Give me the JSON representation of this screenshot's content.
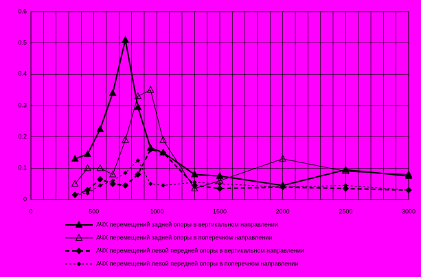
{
  "chart_data": {
    "type": "line",
    "x": [
      350,
      450,
      550,
      650,
      750,
      850,
      950,
      1050,
      1300,
      1500,
      2000,
      2500,
      3000
    ],
    "series": [
      {
        "name": "АЧХ перемещений задней опоры в вертикальном направлении",
        "color": "#000000",
        "width": 2,
        "dash": "solid",
        "marker": "filled-triangle",
        "values": [
          0.13,
          0.145,
          0.225,
          0.34,
          0.51,
          0.295,
          0.165,
          0.15,
          0.08,
          0.075,
          0.045,
          0.095,
          0.075
        ]
      },
      {
        "name": "АЧХ перемещений задней опоры в поперечном направлении",
        "color": "#000000",
        "width": 1,
        "dash": "solid",
        "marker": "open-triangle",
        "values": [
          0.05,
          0.1,
          0.1,
          0.08,
          0.19,
          0.33,
          0.35,
          0.19,
          0.035,
          0.06,
          0.13,
          0.09,
          0.08
        ]
      },
      {
        "name": "АЧХ перемещений левой передней опоры в вертикальном направлении",
        "color": "#000000",
        "width": 2,
        "dash": "dashed",
        "marker": "filled-diamond",
        "values": [
          0.015,
          0.03,
          0.065,
          0.05,
          0.045,
          0.08,
          0.16,
          0.15,
          0.045,
          0.035,
          0.04,
          0.035,
          0.03
        ]
      },
      {
        "name": "АЧХ перемещений левой передней опоры в поперечном направлении",
        "color": "#000000",
        "width": 1,
        "dash": "dashed",
        "marker": "small-diamond",
        "values": [
          0.015,
          0.02,
          0.045,
          0.06,
          0.085,
          0.125,
          0.05,
          0.045,
          0.055,
          0.05,
          0.04,
          0.045,
          0.03
        ]
      }
    ],
    "xlim": [
      0,
      3000
    ],
    "xticks": [
      0,
      500,
      1000,
      1500,
      2000,
      2500,
      3000
    ],
    "xgrid": [
      100,
      200,
      300,
      400,
      600,
      700,
      800,
      900,
      1100,
      1200,
      1300,
      1400,
      1600,
      1700,
      1800,
      1900,
      2100,
      2200,
      2300,
      2400,
      2600,
      2700,
      2800,
      2900
    ],
    "ylim": [
      0,
      0.6
    ],
    "yticks": [
      0,
      0.1,
      0.2,
      0.3,
      0.4,
      0.5,
      0.6
    ],
    "grid": true,
    "background": "#ff00ff",
    "legend": "bottom"
  }
}
